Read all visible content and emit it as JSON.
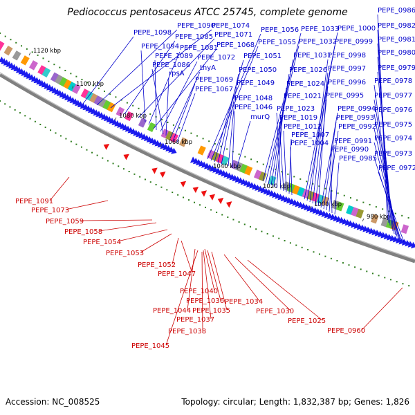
{
  "title": "Pediococcus pentosaceus ATCC 25745, complete genome",
  "footer": {
    "accession": "Accession: NC_008525",
    "info": "Topology: circular; Length: 1,832,387 bp; Genes: 1,826"
  },
  "colors": {
    "forward_label": "#0000cc",
    "reverse_label": "#cc0000",
    "forward_arrow": "#1a1aee",
    "reverse_arrow": "#ee1111",
    "backbone": "#808080",
    "tick": "#2e7d1e"
  },
  "ticks": [
    "1120 kbp",
    "1100 kbp",
    "1080 kbp",
    "1060 kbp",
    "1040 kbp",
    "1020 kbp",
    "1000 kbp",
    "980 kbp"
  ],
  "forward_labels": [
    "PEPE_1098",
    "PEPE_1090",
    "PEPE_1074",
    "PEPE_1085",
    "PEPE_1071",
    "PEPE_1094",
    "PEPE_1081",
    "PEPE_1068",
    "PEPE_1089",
    "PEPE_1072",
    "PEPE_1086",
    "rpsA",
    "thyA",
    "PEPE_1069",
    "PEPE_1067",
    "PEPE_1056",
    "PEPE_1055",
    "PEPE_1051",
    "PEPE_1050",
    "PEPE_1049",
    "PEPE_1048",
    "PEPE_1046",
    "murQ",
    "PEPE_1033",
    "PEPE_1032",
    "PEPE_1031",
    "PEPE_1026",
    "PEPE_1024",
    "PEPE_1021",
    "PEPE_1023",
    "PEPE_1019",
    "PEPE_1012",
    "PEPE_1007",
    "PEPE_1004",
    "PEPE_1000",
    "PEPE_0999",
    "PEPE_0998",
    "PEPE_0997",
    "PEPE_0996",
    "PEPE_0995",
    "PEPE_0994",
    "PEPE_0993",
    "PEPE_0992",
    "PEPE_0991",
    "PEPE_0990",
    "PEPE_0985",
    "PEPE_0986",
    "PEPE_0982",
    "PEPE_0981",
    "PEPE_0980",
    "PEPE_0979",
    "PEPE_0978",
    "PEPE_0977",
    "PEPE_0976",
    "PEPE_0975",
    "PEPE_0974",
    "PEPE_0973",
    "PEPE_0972"
  ],
  "reverse_labels": [
    "PEPE_1091",
    "PEPE_1073",
    "PEPE_1059",
    "PEPE_1058",
    "PEPE_1054",
    "PEPE_1053",
    "PEPE_1052",
    "PEPE_1047",
    "PEPE_1040",
    "PEPE_1036",
    "PEPE_1034",
    "PEPE_1044",
    "PEPE_1035",
    "PEPE_1030",
    "PEPE_1037",
    "PEPE_1025",
    "PEPE_1038",
    "PEPE_0960",
    "PEPE_1045"
  ]
}
